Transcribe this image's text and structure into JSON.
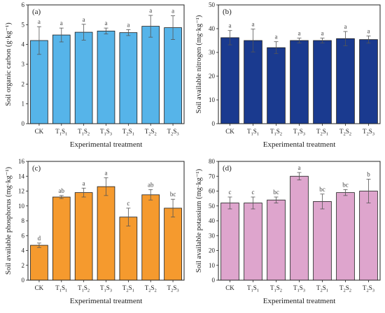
{
  "chart_data": [
    {
      "type": "bar",
      "panel": "(a)",
      "ylabel": "Soil organic carbon (g·kg⁻¹)",
      "xlabel": "Experimental treatment",
      "categories": [
        {
          "base": "CK",
          "subs": []
        },
        {
          "base": "T",
          "subs": [
            "1",
            "S",
            "1"
          ]
        },
        {
          "base": "T",
          "subs": [
            "1",
            "S",
            "2"
          ]
        },
        {
          "base": "T",
          "subs": [
            "1",
            "S",
            "3"
          ]
        },
        {
          "base": "T",
          "subs": [
            "2",
            "S",
            "1"
          ]
        },
        {
          "base": "T",
          "subs": [
            "2",
            "S",
            "2"
          ]
        },
        {
          "base": "T",
          "subs": [
            "2",
            "S",
            "3"
          ]
        }
      ],
      "values": [
        4.2,
        4.48,
        4.62,
        4.68,
        4.6,
        4.92,
        4.85
      ],
      "errors": [
        0.7,
        0.35,
        0.4,
        0.15,
        0.15,
        0.55,
        0.6
      ],
      "letters": [
        "a",
        "a",
        "a",
        "a",
        "a",
        "a",
        "a"
      ],
      "ylim": [
        0,
        6
      ],
      "yticks": [
        0,
        1,
        2,
        3,
        4,
        5,
        6
      ],
      "color": "#56b4e9"
    },
    {
      "type": "bar",
      "panel": "(b)",
      "ylabel": "Soil available nitrogen (mg·kg⁻¹)",
      "xlabel": "Experimental treatment",
      "categories": [
        {
          "base": "CK",
          "subs": []
        },
        {
          "base": "T",
          "subs": [
            "1",
            "S",
            "1"
          ]
        },
        {
          "base": "T",
          "subs": [
            "1",
            "S",
            "2"
          ]
        },
        {
          "base": "T",
          "subs": [
            "1",
            "S",
            "3"
          ]
        },
        {
          "base": "T",
          "subs": [
            "2",
            "S",
            "1"
          ]
        },
        {
          "base": "T",
          "subs": [
            "2",
            "S",
            "2"
          ]
        },
        {
          "base": "T",
          "subs": [
            "2",
            "S",
            "3"
          ]
        }
      ],
      "values": [
        36.2,
        35.0,
        32.0,
        35.0,
        35.0,
        35.8,
        35.4
      ],
      "errors": [
        3.0,
        4.8,
        2.5,
        1.0,
        1.0,
        3.0,
        1.5
      ],
      "letters": [
        "a",
        "a",
        "a",
        "a",
        "a",
        "a",
        "a"
      ],
      "ylim": [
        0,
        50
      ],
      "yticks": [
        0,
        10,
        20,
        30,
        40,
        50
      ],
      "color": "#1a3a8f"
    },
    {
      "type": "bar",
      "panel": "(c)",
      "ylabel": "Soil available phosphorus (mg·kg⁻¹)",
      "xlabel": "Experimental treatment",
      "categories": [
        {
          "base": "CK",
          "subs": []
        },
        {
          "base": "T",
          "subs": [
            "1",
            "S",
            "1"
          ]
        },
        {
          "base": "T",
          "subs": [
            "1",
            "S",
            "2"
          ]
        },
        {
          "base": "T",
          "subs": [
            "1",
            "S",
            "3"
          ]
        },
        {
          "base": "T",
          "subs": [
            "2",
            "S",
            "1"
          ]
        },
        {
          "base": "T",
          "subs": [
            "2",
            "S",
            "2"
          ]
        },
        {
          "base": "T",
          "subs": [
            "2",
            "S",
            "3"
          ]
        }
      ],
      "values": [
        4.7,
        11.2,
        11.8,
        12.6,
        8.5,
        11.5,
        9.7
      ],
      "errors": [
        0.3,
        0.2,
        0.6,
        1.2,
        1.2,
        0.7,
        1.2
      ],
      "letters": [
        "d",
        "ab",
        "a",
        "a",
        "c",
        "ab",
        "bc"
      ],
      "ylim": [
        0,
        16
      ],
      "yticks": [
        0,
        2,
        4,
        6,
        8,
        10,
        12,
        14,
        16
      ],
      "color": "#f59a2e"
    },
    {
      "type": "bar",
      "panel": "(d)",
      "ylabel": "Soil available potassium (mg·kg⁻¹)",
      "xlabel": "Experimental treatment",
      "categories": [
        {
          "base": "CK",
          "subs": []
        },
        {
          "base": "T",
          "subs": [
            "1",
            "S",
            "1"
          ]
        },
        {
          "base": "T",
          "subs": [
            "1",
            "S",
            "2"
          ]
        },
        {
          "base": "T",
          "subs": [
            "1",
            "S",
            "3"
          ]
        },
        {
          "base": "T",
          "subs": [
            "2",
            "S",
            "1"
          ]
        },
        {
          "base": "T",
          "subs": [
            "2",
            "S",
            "2"
          ]
        },
        {
          "base": "T",
          "subs": [
            "2",
            "S",
            "3"
          ]
        }
      ],
      "values": [
        52,
        52,
        54,
        70,
        53,
        59,
        60
      ],
      "errors": [
        4,
        4,
        2,
        2.5,
        5,
        2,
        8
      ],
      "letters": [
        "c",
        "c",
        "bc",
        "a",
        "bc",
        "bc",
        "b"
      ],
      "ylim": [
        0,
        80
      ],
      "yticks": [
        0,
        10,
        20,
        30,
        40,
        50,
        60,
        70,
        80
      ],
      "color": "#dea5cd"
    }
  ]
}
